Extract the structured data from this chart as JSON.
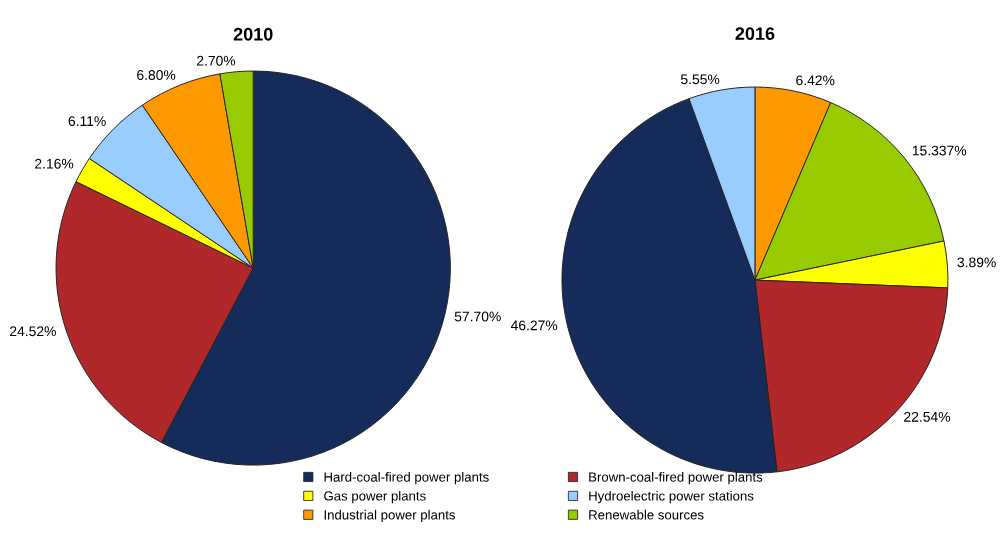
{
  "chart_data": [
    {
      "type": "pie",
      "title": "2010",
      "legend": "bottom",
      "categories": [
        "Hard-coal-fired power plants",
        "Brown-coal-fired power plants",
        "Gas power plants",
        "Hydroelectric power stations",
        "Industrial power plants",
        "Renewable sources"
      ],
      "values": [
        57.7,
        24.52,
        2.16,
        6.11,
        6.8,
        2.7
      ],
      "value_labels": [
        "57.70%",
        "24.52%",
        "2.16%",
        "6.11%",
        "6.80%",
        "2.70%"
      ],
      "colors": [
        "#152b5a",
        "#b0282a",
        "#ffff00",
        "#99ccff",
        "#ff9900",
        "#99cc00"
      ]
    },
    {
      "type": "pie",
      "title": "2016",
      "categories": [
        null,
        null,
        null,
        null,
        null,
        null
      ],
      "values": [
        6.42,
        15.337,
        3.89,
        22.54,
        46.27,
        5.55
      ],
      "value_labels": [
        "6.42%",
        "15.337%",
        "3.89%",
        "22.54%",
        "46.27%",
        "5.55%"
      ],
      "colors": [
        "#ff9900",
        "#99cc00",
        "#ffff00",
        "#b0282a",
        "#152b5a",
        "#99ccff"
      ]
    }
  ]
}
